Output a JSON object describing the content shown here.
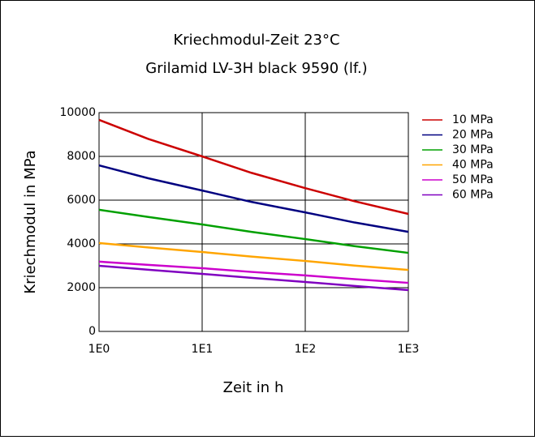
{
  "chart_data": {
    "type": "line",
    "title": [
      "Kriechmodul-Zeit 23°C",
      "Grilamid LV-3H black 9590 (lf.)"
    ],
    "x_label": "Zeit in h",
    "y_label": "Kriechmodul in MPa",
    "x": [
      1,
      3,
      10,
      30,
      100,
      300,
      1000
    ],
    "xlog": true,
    "grid": true,
    "legend": "right",
    "xlim": [
      1,
      1000
    ],
    "xticks": [
      {
        "value": 1,
        "label": "1E0"
      },
      {
        "value": 10,
        "label": "1E1"
      },
      {
        "value": 100,
        "label": "1E2"
      },
      {
        "value": 1000,
        "label": "1E3"
      }
    ],
    "ylim": [
      0,
      10000
    ],
    "yticks": [
      0,
      2000,
      4000,
      6000,
      8000,
      10000
    ],
    "series": [
      {
        "name": "10 MPa",
        "color": "#cc0000",
        "values": [
          9670,
          8800,
          8000,
          7250,
          6550,
          5950,
          5370
        ]
      },
      {
        "name": "20 MPa",
        "color": "#000080",
        "values": [
          7590,
          7000,
          6440,
          5920,
          5440,
          4980,
          4550
        ]
      },
      {
        "name": "30 MPa",
        "color": "#00a000",
        "values": [
          5560,
          5230,
          4890,
          4550,
          4220,
          3900,
          3590
        ]
      },
      {
        "name": "40 MPa",
        "color": "#ffa500",
        "values": [
          4040,
          3840,
          3630,
          3420,
          3220,
          3010,
          2810
        ]
      },
      {
        "name": "50 MPa",
        "color": "#cc00cc",
        "values": [
          3190,
          3040,
          2890,
          2720,
          2560,
          2390,
          2220
        ]
      },
      {
        "name": "60 MPa",
        "color": "#8000c0",
        "values": [
          3000,
          2820,
          2630,
          2450,
          2260,
          2080,
          1890
        ]
      }
    ]
  }
}
